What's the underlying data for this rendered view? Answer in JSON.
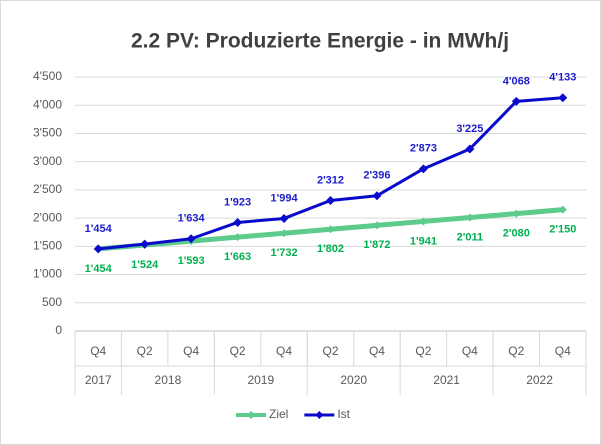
{
  "chart_data": {
    "type": "line",
    "title": "2.2 PV: Produzierte Energie - in MWh/j",
    "categories": [
      [
        "Q4",
        "2017"
      ],
      [
        "Q2",
        "2018"
      ],
      [
        "Q4",
        "2018"
      ],
      [
        "Q2",
        "2019"
      ],
      [
        "Q4",
        "2019"
      ],
      [
        "Q2",
        "2020"
      ],
      [
        "Q4",
        "2020"
      ],
      [
        "Q2",
        "2021"
      ],
      [
        "Q4",
        "2021"
      ],
      [
        "Q2",
        "2022"
      ],
      [
        "Q4",
        "2022"
      ]
    ],
    "series": [
      {
        "name": "Ziel",
        "color": "#5ccb8c",
        "label_color": "#00b050",
        "values": [
          1454,
          1524,
          1593,
          1663,
          1732,
          1802,
          1872,
          1941,
          2011,
          2080,
          2150
        ],
        "value_labels": [
          "1'454",
          "1'524",
          "1'593",
          "1'663",
          "1'732",
          "1'802",
          "1'872",
          "1'941",
          "2'011",
          "2'080",
          "2'150"
        ]
      },
      {
        "name": "Ist",
        "color": "#0a0acd",
        "label_color": "#1c1ccc",
        "values": [
          1454,
          1540,
          1634,
          1923,
          1994,
          2312,
          2396,
          2873,
          3225,
          4068,
          4133
        ],
        "value_labels": [
          "1'454",
          null,
          "1'634",
          "1'923",
          "1'994",
          "2'312",
          "2'396",
          "2'873",
          "3'225",
          "4'068",
          "4'133"
        ]
      }
    ],
    "ylim": [
      0,
      4500
    ],
    "yticks": [
      0,
      500,
      {
        "value": 1000,
        "label": "1'000"
      },
      {
        "value": 1500,
        "label": "1'500"
      },
      {
        "value": 2000,
        "label": "2'000"
      },
      {
        "value": 2500,
        "label": "2'500"
      },
      {
        "value": 3000,
        "label": "3'000"
      },
      {
        "value": 3500,
        "label": "3'500"
      },
      {
        "value": 4000,
        "label": "4'000"
      },
      {
        "value": 4500,
        "label": "4'500"
      }
    ],
    "legend": "bottom"
  }
}
